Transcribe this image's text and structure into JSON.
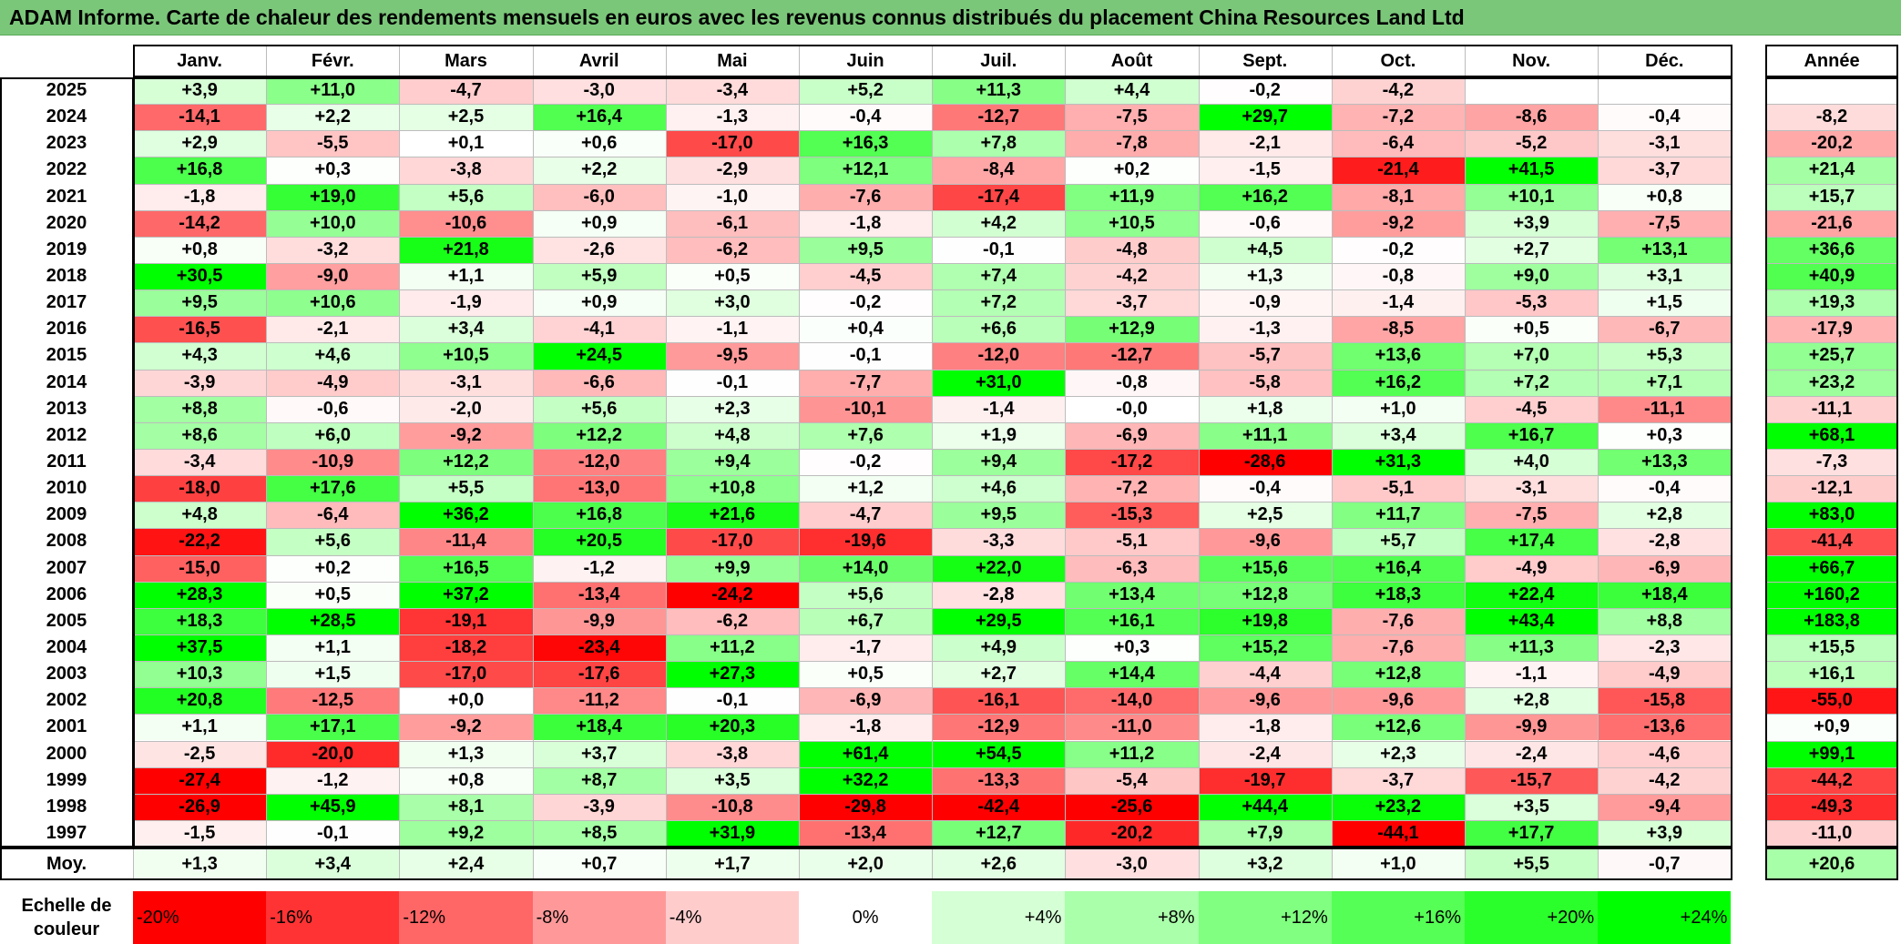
{
  "title": "ADAM Informe. Carte de chaleur des rendements mensuels en euros avec les revenus connus distribués du placement China Resources Land Ltd",
  "chart_data": {
    "type": "heatmap",
    "title": "ADAM Informe. Carte de chaleur des rendements mensuels en euros avec les revenus connus distribués du placement China Resources Land Ltd",
    "months": [
      "Janv.",
      "Févr.",
      "Mars",
      "Avril",
      "Mai",
      "Juin",
      "Juil.",
      "Août",
      "Sept.",
      "Oct.",
      "Nov.",
      "Déc."
    ],
    "year_header": "Année",
    "avg_label": "Moy.",
    "rows": [
      {
        "year": "2025",
        "values": [
          "+3,9",
          "+11,0",
          "-4,7",
          "-3,0",
          "-3,4",
          "+5,2",
          "+11,3",
          "+4,4",
          "-0,2",
          "-4,2",
          "",
          ""
        ],
        "annual": ""
      },
      {
        "year": "2024",
        "values": [
          "-14,1",
          "+2,2",
          "+2,5",
          "+16,4",
          "-1,3",
          "-0,4",
          "-12,7",
          "-7,5",
          "+29,7",
          "-7,2",
          "-8,6",
          "-0,4"
        ],
        "annual": "-8,2"
      },
      {
        "year": "2023",
        "values": [
          "+2,9",
          "-5,5",
          "+0,1",
          "+0,6",
          "-17,0",
          "+16,3",
          "+7,8",
          "-7,8",
          "-2,1",
          "-6,4",
          "-5,2",
          "-3,1"
        ],
        "annual": "-20,2"
      },
      {
        "year": "2022",
        "values": [
          "+16,8",
          "+0,3",
          "-3,8",
          "+2,2",
          "-2,9",
          "+12,1",
          "-8,4",
          "+0,2",
          "-1,5",
          "-21,4",
          "+41,5",
          "-3,7"
        ],
        "annual": "+21,4"
      },
      {
        "year": "2021",
        "values": [
          "-1,8",
          "+19,0",
          "+5,6",
          "-6,0",
          "-1,0",
          "-7,6",
          "-17,4",
          "+11,9",
          "+16,2",
          "-8,1",
          "+10,1",
          "+0,8"
        ],
        "annual": "+15,7"
      },
      {
        "year": "2020",
        "values": [
          "-14,2",
          "+10,0",
          "-10,6",
          "+0,9",
          "-6,1",
          "-1,8",
          "+4,2",
          "+10,5",
          "-0,6",
          "-9,2",
          "+3,9",
          "-7,5"
        ],
        "annual": "-21,6"
      },
      {
        "year": "2019",
        "values": [
          "+0,8",
          "-3,2",
          "+21,8",
          "-2,6",
          "-6,2",
          "+9,5",
          "-0,1",
          "-4,8",
          "+4,5",
          "-0,2",
          "+2,7",
          "+13,1"
        ],
        "annual": "+36,6"
      },
      {
        "year": "2018",
        "values": [
          "+30,5",
          "-9,0",
          "+1,1",
          "+5,9",
          "+0,5",
          "-4,5",
          "+7,4",
          "-4,2",
          "+1,3",
          "-0,8",
          "+9,0",
          "+3,1"
        ],
        "annual": "+40,9"
      },
      {
        "year": "2017",
        "values": [
          "+9,5",
          "+10,6",
          "-1,9",
          "+0,9",
          "+3,0",
          "-0,2",
          "+7,2",
          "-3,7",
          "-0,9",
          "-1,4",
          "-5,3",
          "+1,5"
        ],
        "annual": "+19,3"
      },
      {
        "year": "2016",
        "values": [
          "-16,5",
          "-2,1",
          "+3,4",
          "-4,1",
          "-1,1",
          "+0,4",
          "+6,6",
          "+12,9",
          "-1,3",
          "-8,5",
          "+0,5",
          "-6,7"
        ],
        "annual": "-17,9"
      },
      {
        "year": "2015",
        "values": [
          "+4,3",
          "+4,6",
          "+10,5",
          "+24,5",
          "-9,5",
          "-0,1",
          "-12,0",
          "-12,7",
          "-5,7",
          "+13,6",
          "+7,0",
          "+5,3"
        ],
        "annual": "+25,7"
      },
      {
        "year": "2014",
        "values": [
          "-3,9",
          "-4,9",
          "-3,1",
          "-6,6",
          "-0,1",
          "-7,7",
          "+31,0",
          "-0,8",
          "-5,8",
          "+16,2",
          "+7,2",
          "+7,1"
        ],
        "annual": "+23,2"
      },
      {
        "year": "2013",
        "values": [
          "+8,8",
          "-0,6",
          "-2,0",
          "+5,6",
          "+2,3",
          "-10,1",
          "-1,4",
          "-0,0",
          "+1,8",
          "+1,0",
          "-4,5",
          "-11,1"
        ],
        "annual": "-11,1"
      },
      {
        "year": "2012",
        "values": [
          "+8,6",
          "+6,0",
          "-9,2",
          "+12,2",
          "+4,8",
          "+7,6",
          "+1,9",
          "-6,9",
          "+11,1",
          "+3,4",
          "+16,7",
          "+0,3"
        ],
        "annual": "+68,1"
      },
      {
        "year": "2011",
        "values": [
          "-3,4",
          "-10,9",
          "+12,2",
          "-12,0",
          "+9,4",
          "-0,2",
          "+9,4",
          "-17,2",
          "-28,6",
          "+31,3",
          "+4,0",
          "+13,3"
        ],
        "annual": "-7,3"
      },
      {
        "year": "2010",
        "values": [
          "-18,0",
          "+17,6",
          "+5,5",
          "-13,0",
          "+10,8",
          "+1,2",
          "+4,6",
          "-7,2",
          "-0,4",
          "-5,1",
          "-3,1",
          "-0,4"
        ],
        "annual": "-12,1"
      },
      {
        "year": "2009",
        "values": [
          "+4,8",
          "-6,4",
          "+36,2",
          "+16,8",
          "+21,6",
          "-4,7",
          "+9,5",
          "-15,3",
          "+2,5",
          "+11,7",
          "-7,5",
          "+2,8"
        ],
        "annual": "+83,0"
      },
      {
        "year": "2008",
        "values": [
          "-22,2",
          "+5,6",
          "-11,4",
          "+20,5",
          "-17,0",
          "-19,6",
          "-3,3",
          "-5,1",
          "-9,6",
          "+5,7",
          "+17,4",
          "-2,8"
        ],
        "annual": "-41,4"
      },
      {
        "year": "2007",
        "values": [
          "-15,0",
          "+0,2",
          "+16,5",
          "-1,2",
          "+9,9",
          "+14,0",
          "+22,0",
          "-6,3",
          "+15,6",
          "+16,4",
          "-4,9",
          "-6,9"
        ],
        "annual": "+66,7"
      },
      {
        "year": "2006",
        "values": [
          "+28,3",
          "+0,5",
          "+37,2",
          "-13,4",
          "-24,2",
          "+5,6",
          "-2,8",
          "+13,4",
          "+12,8",
          "+18,3",
          "+22,4",
          "+18,4"
        ],
        "annual": "+160,2"
      },
      {
        "year": "2005",
        "values": [
          "+18,3",
          "+28,5",
          "-19,1",
          "-9,9",
          "-6,2",
          "+6,7",
          "+29,5",
          "+16,1",
          "+19,8",
          "-7,6",
          "+43,4",
          "+8,8"
        ],
        "annual": "+183,8"
      },
      {
        "year": "2004",
        "values": [
          "+37,5",
          "+1,1",
          "-18,2",
          "-23,4",
          "+11,2",
          "-1,7",
          "+4,9",
          "+0,3",
          "+15,2",
          "-7,6",
          "+11,3",
          "-2,3"
        ],
        "annual": "+15,5"
      },
      {
        "year": "2003",
        "values": [
          "+10,3",
          "+1,5",
          "-17,0",
          "-17,6",
          "+27,3",
          "+0,5",
          "+2,7",
          "+14,4",
          "-4,4",
          "+12,8",
          "-1,1",
          "-4,9"
        ],
        "annual": "+16,1"
      },
      {
        "year": "2002",
        "values": [
          "+20,8",
          "-12,5",
          "+0,0",
          "-11,2",
          "-0,1",
          "-6,9",
          "-16,1",
          "-14,0",
          "-9,6",
          "-9,6",
          "+2,8",
          "-15,8"
        ],
        "annual": "-55,0"
      },
      {
        "year": "2001",
        "values": [
          "+1,1",
          "+17,1",
          "-9,2",
          "+18,4",
          "+20,3",
          "-1,8",
          "-12,9",
          "-11,0",
          "-1,8",
          "+12,6",
          "-9,9",
          "-13,6"
        ],
        "annual": "+0,9"
      },
      {
        "year": "2000",
        "values": [
          "-2,5",
          "-20,0",
          "+1,3",
          "+3,7",
          "-3,8",
          "+61,4",
          "+54,5",
          "+11,2",
          "-2,4",
          "+2,3",
          "-2,4",
          "-4,6"
        ],
        "annual": "+99,1"
      },
      {
        "year": "1999",
        "values": [
          "-27,4",
          "-1,2",
          "+0,8",
          "+8,7",
          "+3,5",
          "+32,2",
          "-13,3",
          "-5,4",
          "-19,7",
          "-3,7",
          "-15,7",
          "-4,2"
        ],
        "annual": "-44,2"
      },
      {
        "year": "1998",
        "values": [
          "-26,9",
          "+45,9",
          "+8,1",
          "-3,9",
          "-10,8",
          "-29,8",
          "-42,4",
          "-25,6",
          "+44,4",
          "+23,2",
          "+3,5",
          "-9,4"
        ],
        "annual": "-49,3"
      },
      {
        "year": "1997",
        "values": [
          "-1,5",
          "-0,1",
          "+9,2",
          "+8,5",
          "+31,9",
          "-13,4",
          "+12,7",
          "-20,2",
          "+7,9",
          "-44,1",
          "+17,7",
          "+3,9"
        ],
        "annual": "-11,0"
      }
    ],
    "averages": [
      "+1,3",
      "+3,4",
      "+2,4",
      "+0,7",
      "+1,7",
      "+2,0",
      "+2,6",
      "-3,0",
      "+3,2",
      "+1,0",
      "+5,5",
      "-0,7"
    ],
    "average_annual": "+20,6",
    "color_scale": {
      "label": "Echelle de\ncouleur",
      "stops": [
        {
          "label": "-20%",
          "value": -20,
          "color": "#ff0000"
        },
        {
          "label": "-16%",
          "value": -16,
          "color": "#ff3333"
        },
        {
          "label": "-12%",
          "value": -12,
          "color": "#ff6666"
        },
        {
          "label": "-8%",
          "value": -8,
          "color": "#ff9999"
        },
        {
          "label": "-4%",
          "value": -4,
          "color": "#ffcccc"
        },
        {
          "label": "0%",
          "value": 0,
          "color": "#ffffff"
        },
        {
          "label": "+4%",
          "value": 4,
          "color": "#d5ffd5"
        },
        {
          "label": "+8%",
          "value": 8,
          "color": "#aaffaa"
        },
        {
          "label": "+12%",
          "value": 12,
          "color": "#80ff80"
        },
        {
          "label": "+16%",
          "value": 16,
          "color": "#55ff55"
        },
        {
          "label": "+20%",
          "value": 20,
          "color": "#2bff2b"
        },
        {
          "label": "+24%",
          "value": 24,
          "color": "#00ff00"
        }
      ]
    }
  }
}
